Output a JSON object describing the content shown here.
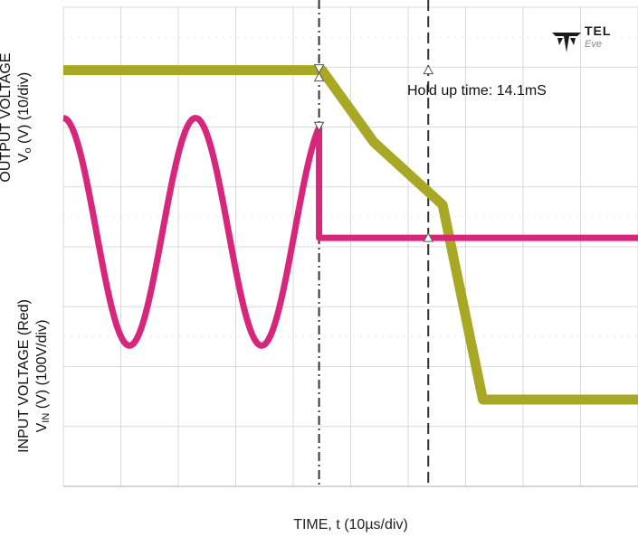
{
  "chart_data": {
    "type": "line",
    "xlabel": "TIME, t (10µs/div)",
    "ylabel_top": {
      "line1": "OUTPUT VOLTAGE",
      "line2_main": "V",
      "line2_sub": "o",
      "line2_rest": " (V) (10/div)"
    },
    "ylabel_bottom": {
      "line1": "INPUT VOLTAGE (Red)",
      "line2_main": "V",
      "line2_sub": "IN",
      "line2_rest": " (V) (100V/div)"
    },
    "annotation": "Hold up time: 14.1mS",
    "divisions": {
      "x": 10,
      "y": 8
    },
    "series": [
      {
        "color": "#a8a824",
        "points": [
          [
            0,
            6.95
          ],
          [
            4.5,
            6.95
          ],
          [
            5.4,
            5.75
          ],
          [
            6.6,
            4.7
          ],
          [
            7.3,
            1.45
          ],
          [
            10,
            1.45
          ]
        ]
      },
      {
        "color": "#d6277d",
        "waveform": "sine",
        "points": [
          [
            0,
            6.05
          ],
          [
            1.15,
            2.35
          ],
          [
            2.3,
            6.15
          ],
          [
            3.45,
            2.35
          ],
          [
            4.45,
            6.1
          ],
          [
            4.45,
            4.15
          ],
          [
            10,
            4.15
          ]
        ]
      }
    ],
    "markers": [
      {
        "type": "dash-dot",
        "x": 4.45
      },
      {
        "type": "dashed",
        "x": 6.35
      }
    ],
    "colors": {
      "grid": "#d9d9d9",
      "output": "#a8a824",
      "input": "#d6277d"
    }
  },
  "logo": {
    "text": "TEL",
    "subtext": "Eve"
  }
}
